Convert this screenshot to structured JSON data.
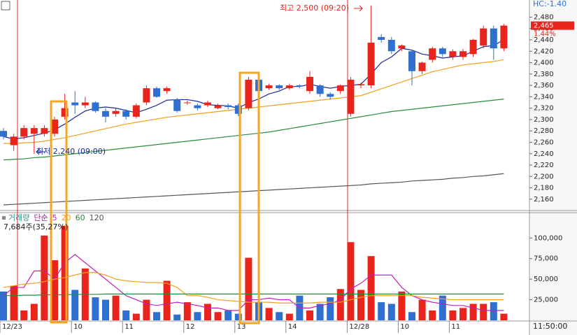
{
  "chart_data": {
    "type": "candlestick",
    "status": "HC:-1.40",
    "current_price": {
      "value": 2465,
      "label": "2,465"
    },
    "change": "1.44%",
    "high_note": "최고 2,500 (09:20)",
    "low_note": "최저 2,240 (09:00)",
    "legend": [
      "거래량",
      "단순",
      "5",
      "20",
      "60",
      "120"
    ],
    "volume_note": "7,684주(35,27%)",
    "time": "11:50:00",
    "up_color": "#e8241c",
    "down_color": "#2f6fd0",
    "categories": [
      "12/23",
      null,
      null,
      null,
      null,
      null,
      null,
      "10",
      null,
      null,
      null,
      null,
      "11",
      null,
      null,
      null,
      null,
      null,
      "12",
      null,
      null,
      null,
      null,
      "13",
      null,
      null,
      null,
      null,
      "14",
      null,
      null,
      null,
      null,
      null,
      "12/28",
      null,
      null,
      null,
      null,
      "10",
      null,
      null,
      null,
      null,
      "11",
      null,
      null,
      null,
      null,
      null
    ],
    "open": [
      2280,
      2255,
      2270,
      2275,
      2275,
      2275,
      2305,
      2330,
      2325,
      2330,
      2315,
      2310,
      2315,
      2305,
      2330,
      2355,
      2350,
      2335,
      2330,
      2325,
      2325,
      2320,
      2325,
      2325,
      2320,
      2370,
      2355,
      2360,
      2355,
      2360,
      2350,
      2360,
      2345,
      2350,
      2310,
      2360,
      2360,
      2445,
      2440,
      2425,
      2420,
      2385,
      2405,
      2425,
      2410,
      2410,
      2415,
      2430,
      2460,
      2425
    ],
    "high": [
      2285,
      2275,
      2290,
      2290,
      2290,
      2305,
      2345,
      2350,
      2340,
      2332,
      2320,
      2320,
      2318,
      2328,
      2360,
      2358,
      2358,
      2338,
      2333,
      2328,
      2333,
      2328,
      2328,
      2328,
      2375,
      2372,
      2363,
      2362,
      2363,
      2362,
      2385,
      2362,
      2348,
      2362,
      2375,
      2365,
      2500,
      2450,
      2445,
      2432,
      2422,
      2402,
      2428,
      2428,
      2423,
      2424,
      2442,
      2465,
      2465,
      2468
    ],
    "low": [
      2265,
      2245,
      2265,
      2240,
      2270,
      2270,
      2300,
      2310,
      2320,
      2312,
      2295,
      2305,
      2300,
      2302,
      2325,
      2338,
      2345,
      2312,
      2326,
      2316,
      2322,
      2318,
      2318,
      2306,
      2316,
      2348,
      2352,
      2352,
      2352,
      2355,
      2345,
      2340,
      2335,
      2345,
      2305,
      2355,
      2355,
      2435,
      2415,
      2420,
      2360,
      2380,
      2400,
      2410,
      2405,
      2405,
      2410,
      2425,
      2405,
      2420
    ],
    "close": [
      2270,
      2270,
      2285,
      2285,
      2285,
      2300,
      2320,
      2325,
      2330,
      2315,
      2305,
      2315,
      2305,
      2325,
      2355,
      2340,
      2355,
      2315,
      2330,
      2320,
      2330,
      2325,
      2322,
      2310,
      2370,
      2350,
      2360,
      2355,
      2360,
      2358,
      2375,
      2345,
      2340,
      2360,
      2370,
      2362,
      2435,
      2440,
      2420,
      2430,
      2385,
      2400,
      2425,
      2415,
      2420,
      2420,
      2440,
      2460,
      2425,
      2465
    ],
    "price_lines": [
      {
        "color": "#1a2a9a",
        "values": [
          2270,
          2266,
          2268,
          2272,
          2276,
          2282,
          2292,
          2304,
          2315,
          2320,
          2322,
          2320,
          2316,
          2312,
          2318,
          2325,
          2334,
          2335,
          2335,
          2332,
          2326,
          2325,
          2324,
          2320,
          2330,
          2336,
          2345,
          2350,
          2358,
          2358,
          2362,
          2358,
          2355,
          2358,
          2360,
          2362,
          2380,
          2400,
          2410,
          2425,
          2422,
          2415,
          2412,
          2408,
          2410,
          2412,
          2420,
          2428,
          2430,
          2440
        ]
      },
      {
        "color": "#f0a020",
        "values": [
          2258,
          2258,
          2259,
          2260,
          2262,
          2265,
          2268,
          2272,
          2276,
          2280,
          2284,
          2288,
          2292,
          2295,
          2298,
          2301,
          2304,
          2306,
          2308,
          2310,
          2312,
          2314,
          2316,
          2318,
          2320,
          2322,
          2324,
          2326,
          2328,
          2330,
          2332,
          2334,
          2336,
          2338,
          2340,
          2342,
          2348,
          2354,
          2360,
          2366,
          2372,
          2378,
          2384,
          2388,
          2392,
          2396,
          2398,
          2400,
          2402,
          2405
        ]
      },
      {
        "color": "#2a8a3a",
        "values": [
          2229,
          2230,
          2231,
          2233,
          2234,
          2236,
          2238,
          2240,
          2242,
          2244,
          2246,
          2248,
          2250,
          2252,
          2254,
          2256,
          2258,
          2260,
          2262,
          2264,
          2266,
          2268,
          2270,
          2272,
          2274,
          2276,
          2278,
          2281,
          2284,
          2287,
          2290,
          2293,
          2296,
          2299,
          2302,
          2305,
          2308,
          2311,
          2314,
          2316,
          2318,
          2320,
          2322,
          2324,
          2326,
          2328,
          2330,
          2332,
          2334,
          2336
        ]
      },
      {
        "color": "#555555",
        "values": [
          2150,
          2151,
          2152,
          2153,
          2154,
          2155,
          2156,
          2157,
          2158,
          2159,
          2160,
          2161,
          2162,
          2163,
          2164,
          2165,
          2166,
          2167,
          2168,
          2169,
          2170,
          2171,
          2172,
          2173,
          2174,
          2175,
          2176,
          2177,
          2178,
          2179,
          2180,
          2181,
          2182,
          2183,
          2184,
          2185,
          2187,
          2188,
          2189,
          2190,
          2192,
          2193,
          2194,
          2195,
          2197,
          2198,
          2200,
          2201,
          2203,
          2205
        ]
      }
    ],
    "volume": [
      35000,
      42000,
      12000,
      20000,
      103000,
      73000,
      115000,
      37000,
      63000,
      28000,
      25000,
      30000,
      12000,
      8000,
      25000,
      10000,
      48000,
      7000,
      22000,
      10000,
      20000,
      10000,
      12000,
      8000,
      76000,
      22000,
      15000,
      10000,
      8000,
      30000,
      12000,
      20000,
      28000,
      38000,
      95000,
      37000,
      78000,
      22000,
      20000,
      35000,
      10000,
      25000,
      12000,
      30000,
      12000,
      15000,
      20000,
      20000,
      22000,
      8000
    ],
    "volume_lines": [
      {
        "color": "#c020c0",
        "values": [
          30000,
          40000,
          40000,
          60000,
          60000,
          50000,
          70000,
          80000,
          70000,
          60000,
          50000,
          40000,
          30000,
          25000,
          20000,
          18000,
          20000,
          22000,
          20000,
          18000,
          15000,
          15000,
          12000,
          12000,
          25000,
          25000,
          27000,
          25000,
          25000,
          15000,
          15000,
          18000,
          20000,
          25000,
          38000,
          45000,
          55000,
          55000,
          55000,
          40000,
          30000,
          25000,
          22000,
          20000,
          18000,
          18000,
          15000,
          12000,
          12000,
          12000
        ]
      },
      {
        "color": "#f0a020",
        "values": [
          40000,
          42000,
          44000,
          45000,
          47000,
          50000,
          52000,
          55000,
          58000,
          58000,
          55000,
          50000,
          48000,
          47000,
          46000,
          46000,
          45000,
          40000,
          30000,
          30000,
          28000,
          25000,
          24000,
          23000,
          22000,
          22000,
          22000,
          21000,
          21000,
          21000,
          21000,
          22000,
          22000,
          22000,
          25000,
          28000,
          30000,
          30000,
          30000,
          30000,
          30000,
          28000,
          27000,
          26000,
          25000,
          25000,
          25000,
          25000,
          25000,
          25000
        ]
      },
      {
        "color": "#2a8a3a",
        "values": [
          30000,
          30000,
          30500,
          30500,
          31000,
          31000,
          31000,
          31500,
          31500,
          31500,
          32000,
          32000,
          32000,
          32000,
          32000,
          32000,
          32000,
          32000,
          32000,
          32000,
          32000,
          32000,
          32000,
          32000,
          32000,
          32000,
          32000,
          32000,
          32000,
          32000,
          32000,
          32000,
          32000,
          32000,
          32000,
          32000,
          32000,
          32000,
          32000,
          32000,
          32000,
          32000,
          32000,
          32000,
          32000,
          32000,
          32000,
          32000,
          32000,
          32000
        ]
      }
    ],
    "ylim": [
      2150,
      2510
    ],
    "yticks": [
      {
        "value": 2160,
        "label": "2,160"
      },
      {
        "value": 2180,
        "label": "2,180"
      },
      {
        "value": 2200,
        "label": "2,200"
      },
      {
        "value": 2220,
        "label": "2,220"
      },
      {
        "value": 2240,
        "label": "2,240"
      },
      {
        "value": 2260,
        "label": "2,260"
      },
      {
        "value": 2280,
        "label": "2,280"
      },
      {
        "value": 2300,
        "label": "2,300"
      },
      {
        "value": 2320,
        "label": "2,320"
      },
      {
        "value": 2340,
        "label": "2,340"
      },
      {
        "value": 2360,
        "label": "2,360"
      },
      {
        "value": 2380,
        "label": "2,380"
      },
      {
        "value": 2400,
        "label": "2,400"
      },
      {
        "value": 2420,
        "label": "2,420"
      },
      {
        "value": 2440,
        "label": "2,440"
      },
      {
        "value": 2460,
        "label": "2,460"
      },
      {
        "value": 2480,
        "label": "2,480"
      }
    ],
    "y2lim": [
      0,
      130000
    ],
    "y2ticks": [
      {
        "value": 25000,
        "label": "25,000"
      },
      {
        "value": 50000,
        "label": "50,000"
      },
      {
        "value": 75000,
        "label": "75,000"
      },
      {
        "value": 100000,
        "label": "100,000"
      }
    ]
  }
}
